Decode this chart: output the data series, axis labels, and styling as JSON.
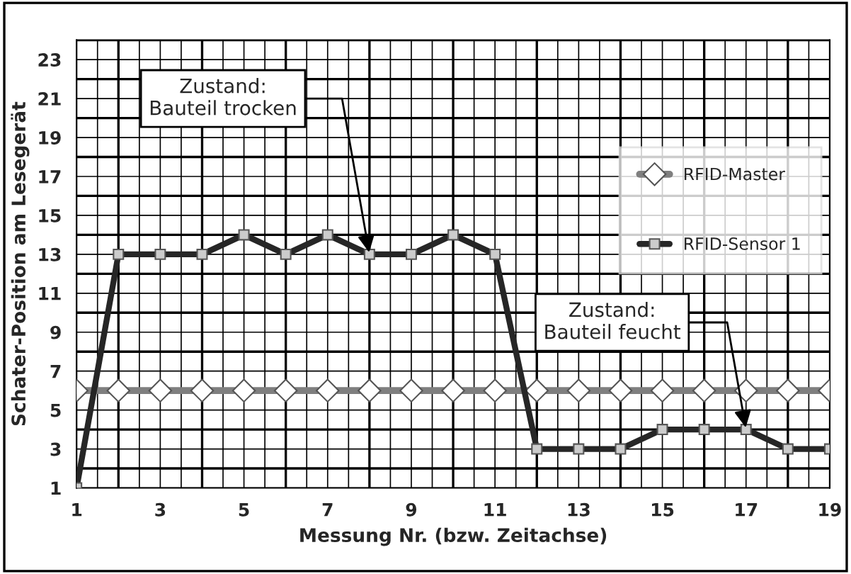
{
  "chart_data": {
    "type": "line",
    "xlabel": "Messung Nr. (bzw. Zeitachse)",
    "ylabel": "Schater-Position am Lesegerät",
    "x": [
      1,
      2,
      3,
      4,
      5,
      6,
      7,
      8,
      9,
      10,
      11,
      12,
      13,
      14,
      15,
      16,
      17,
      18,
      19
    ],
    "series": [
      {
        "name": "RFID-Master",
        "color": "#7f7f7f",
        "marker": "diamond",
        "values": [
          6,
          6,
          6,
          6,
          6,
          6,
          6,
          6,
          6,
          6,
          6,
          6,
          6,
          6,
          6,
          6,
          6,
          6,
          6
        ]
      },
      {
        "name": "RFID-Sensor 1",
        "color": "#262626",
        "marker": "square",
        "values": [
          1,
          13,
          13,
          13,
          14,
          13,
          14,
          13,
          13,
          14,
          13,
          3,
          3,
          3,
          4,
          4,
          4,
          3,
          3
        ]
      }
    ],
    "xlim": [
      1,
      19
    ],
    "xticks": [
      1,
      3,
      5,
      7,
      9,
      11,
      13,
      15,
      17,
      19
    ],
    "ylim": [
      1,
      24
    ],
    "yticks": [
      1,
      3,
      5,
      7,
      9,
      11,
      13,
      15,
      17,
      19,
      21,
      23
    ],
    "grid": true,
    "legend": "right",
    "line_style": "solid",
    "annotations": [
      {
        "text": "Zustand:\nBauteil trocken",
        "x": 8,
        "y": 13
      },
      {
        "text": "Zustand:\nBauteil feucht",
        "x": 17,
        "y": 4
      }
    ]
  }
}
